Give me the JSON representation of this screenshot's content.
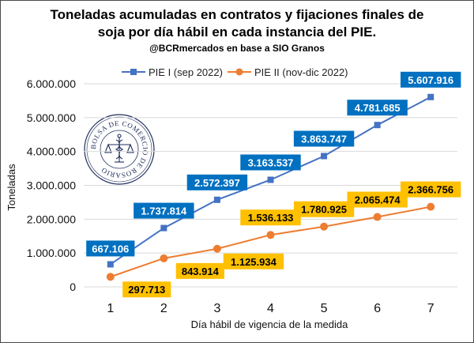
{
  "chart_data": {
    "type": "line",
    "title_lines": [
      "Toneladas acumuladas en contratos y fijaciones finales de",
      "soja por día hábil en cada instancia del PIE."
    ],
    "subtitle": "@BCRmercados en base a SIO Granos",
    "xlabel": "Día hábil de vigencia de la medida",
    "ylabel": "Toneladas",
    "x": [
      1,
      2,
      3,
      4,
      5,
      6,
      7
    ],
    "x_tick_labels": [
      "1",
      "2",
      "3",
      "4",
      "5",
      "6",
      "7"
    ],
    "ylim": [
      0,
      6000000
    ],
    "y_ticks": [
      0,
      1000000,
      2000000,
      3000000,
      4000000,
      5000000,
      6000000
    ],
    "y_tick_labels": [
      "0",
      "1.000.000",
      "2.000.000",
      "3.000.000",
      "4.000.000",
      "5.000.000",
      "6.000.000"
    ],
    "grid": true,
    "legend_position": "top",
    "series": [
      {
        "name": "PIE I (sep 2022)",
        "color": "#4472c4",
        "label_bg": "#0070c0",
        "label_color": "#ffffff",
        "marker": "square",
        "values": [
          667106,
          1737814,
          2572397,
          3163537,
          3863747,
          4781685,
          5607916
        ],
        "labels": [
          "667.106",
          "1.737.814",
          "2.572.397",
          "3.163.537",
          "3.863.747",
          "4.781.685",
          "5.607.916"
        ]
      },
      {
        "name": "PIE II (nov-dic 2022)",
        "color": "#ed7d31",
        "label_bg": "#ffc000",
        "label_color": "#000000",
        "marker": "circle",
        "values": [
          297713,
          843914,
          1125934,
          1536133,
          1780925,
          2065474,
          2366756
        ],
        "labels": [
          "297.713",
          "843.914",
          "1.125.934",
          "1.536.133",
          "1.780.925",
          "2.065.474",
          "2.366.756"
        ]
      }
    ]
  },
  "watermark": {
    "text": "BOLSA DE COMERCIO DE ROSARIO",
    "color": "#1f2f5c",
    "icon": "caduceus-scales-icon"
  }
}
